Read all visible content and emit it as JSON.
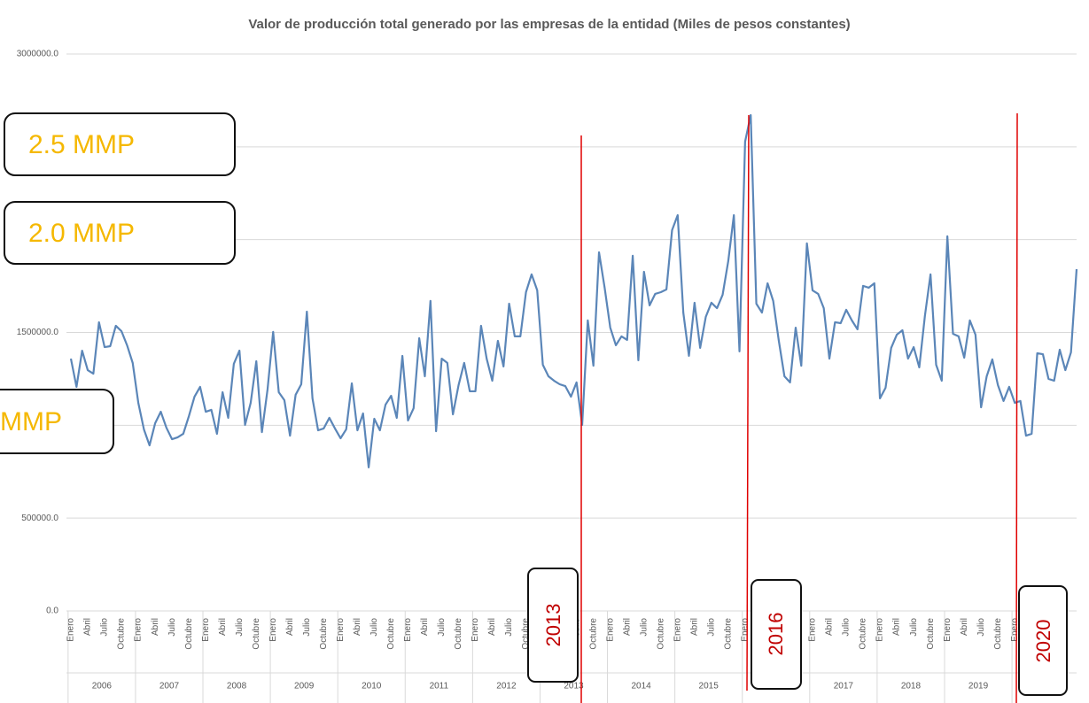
{
  "chart_data": {
    "type": "line",
    "title": "Valor de producción total generado por las empresas de la entidad (Miles de pesos constantes)",
    "categories": [
      "Enero",
      null,
      null,
      "Abril",
      null,
      null,
      "Julio",
      null,
      null,
      "Octubre",
      null,
      null,
      "Enero",
      null,
      null,
      "Abril",
      null,
      null,
      "Julio",
      null,
      null,
      "Octubre",
      null,
      null,
      "Enero",
      null,
      null,
      "Abril",
      null,
      null,
      "Julio",
      null,
      null,
      "Octubre",
      null,
      null,
      "Enero",
      null,
      null,
      "Abril",
      null,
      null,
      "Julio",
      null,
      null,
      "Octubre",
      null,
      null,
      "Enero",
      null,
      null,
      "Abril",
      null,
      null,
      "Julio",
      null,
      null,
      "Octubre",
      null,
      null,
      "Enero",
      null,
      null,
      "Abril",
      null,
      null,
      "Julio",
      null,
      null,
      "Octubre",
      null,
      null,
      "Enero",
      null,
      null,
      "Abril",
      null,
      null,
      "Julio",
      null,
      null,
      "Octubre",
      null,
      null,
      "Enero",
      null,
      null,
      "Abril",
      null,
      null,
      "Julio",
      null,
      null,
      "Octubre",
      null,
      null,
      "Enero",
      null,
      null,
      "Abril",
      null,
      null,
      "Julio",
      null,
      null,
      "Octubre",
      null,
      null,
      "Enero",
      null,
      null,
      "Abril",
      null,
      null,
      "Julio",
      null,
      null,
      "Octubre",
      null,
      null,
      "Enero",
      null,
      null,
      "Abril",
      null,
      null,
      "Julio",
      null,
      null,
      "Octubre",
      null,
      null,
      "Enero",
      null,
      null,
      "Abril",
      null,
      null,
      "Julio",
      null,
      null,
      "Octubre",
      null,
      null,
      "Enero",
      null,
      null,
      "Abril",
      null,
      null,
      "Julio",
      null,
      null,
      "Octubre",
      null,
      null,
      "Enero",
      null,
      null,
      "Abril",
      null,
      null,
      "Julio",
      null,
      null,
      "Octubre",
      null,
      null,
      "Enero",
      null,
      null,
      "Abril",
      null,
      null,
      "Julio",
      null,
      null,
      "Octubre",
      null,
      null
    ],
    "year_groups": [
      "2006",
      "2007",
      "2008",
      "2009",
      "2010",
      "2011",
      "2012",
      "2013",
      "2014",
      "2015",
      "2016",
      "2017",
      "2018",
      "2019",
      "2020"
    ],
    "color": "#5b86b8",
    "values": [
      1359000,
      1207000,
      1402000,
      1297000,
      1278000,
      1555000,
      1421000,
      1426000,
      1536000,
      1507000,
      1431000,
      1336000,
      1121000,
      978000,
      892000,
      1011000,
      1073000,
      987000,
      925000,
      935000,
      954000,
      1049000,
      1154000,
      1207000,
      1073000,
      1083000,
      954000,
      1178000,
      1040000,
      1331000,
      1402000,
      1002000,
      1121000,
      1345000,
      963000,
      1193000,
      1503000,
      1178000,
      1135000,
      944000,
      1164000,
      1221000,
      1612000,
      1145000,
      973000,
      983000,
      1040000,
      983000,
      930000,
      978000,
      1226000,
      973000,
      1064000,
      773000,
      1035000,
      973000,
      1111000,
      1159000,
      1040000,
      1374000,
      1026000,
      1092000,
      1469000,
      1264000,
      1670000,
      968000,
      1359000,
      1336000,
      1059000,
      1216000,
      1336000,
      1183000,
      1183000,
      1536000,
      1359000,
      1240000,
      1455000,
      1317000,
      1655000,
      1479000,
      1479000,
      1717000,
      1813000,
      1727000,
      1326000,
      1264000,
      1240000,
      1221000,
      1211000,
      1154000,
      1231000,
      1002000,
      1565000,
      1321000,
      1932000,
      1741000,
      1526000,
      1431000,
      1479000,
      1460000,
      1913000,
      1350000,
      1827000,
      1646000,
      1708000,
      1717000,
      1732000,
      2051000,
      2132000,
      1607000,
      1374000,
      1660000,
      1417000,
      1584000,
      1660000,
      1631000,
      1703000,
      1884000,
      2132000,
      1398000,
      2528000,
      2671000,
      1655000,
      1607000,
      1765000,
      1670000,
      1455000,
      1264000,
      1231000,
      1526000,
      1321000,
      1980000,
      1727000,
      1708000,
      1631000,
      1359000,
      1555000,
      1550000,
      1622000,
      1565000,
      1517000,
      1751000,
      1741000,
      1765000,
      1145000,
      1202000,
      1417000,
      1488000,
      1512000,
      1359000,
      1421000,
      1312000,
      1589000,
      1813000,
      1326000,
      1240000,
      2018000,
      1493000,
      1479000,
      1364000,
      1565000,
      1488000,
      1097000,
      1264000,
      1355000,
      1216000,
      1131000,
      1207000,
      1121000,
      1131000,
      944000,
      954000,
      1388000,
      1383000,
      1250000,
      1240000,
      1407000,
      1297000,
      1393000,
      1841000
    ],
    "ylim": [
      0,
      3000000
    ],
    "yticks": [
      {
        "value": 0,
        "label": "0.0"
      },
      {
        "value": 500000,
        "label": "500000.0"
      },
      {
        "value": 1000000,
        "label": "1000000.0"
      },
      {
        "value": 1500000,
        "label": "1500000.0"
      },
      {
        "value": 2000000,
        "label": "2000000.0"
      },
      {
        "value": 2500000,
        "label": "2500000.0"
      },
      {
        "value": 3000000,
        "label": "3000000.0"
      }
    ],
    "grid": true,
    "annotations": [
      "2.5 MMP",
      "2.0 MMP",
      "MMP"
    ],
    "year_markers": [
      "2013",
      "2016",
      "2020"
    ]
  }
}
